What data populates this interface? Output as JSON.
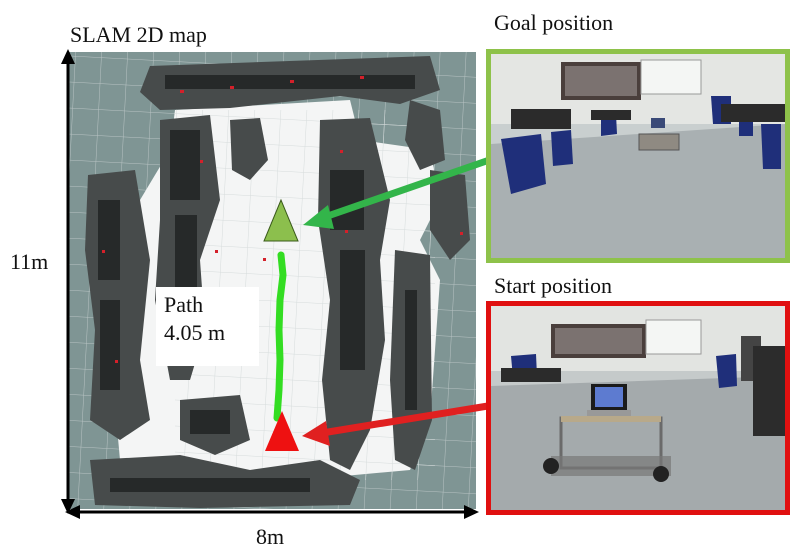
{
  "map": {
    "title": "SLAM 2D map",
    "height_label": "11m",
    "width_label": "8m",
    "path_label_line1": "Path",
    "path_label_line2": "4.05 m"
  },
  "goal": {
    "label": "Goal position",
    "frame_color": "#8ec24a",
    "marker_color": "#8cbf4d"
  },
  "start": {
    "label": "Start position",
    "frame_color": "#e01010",
    "marker_color": "#ee1111"
  },
  "path_color": "#33dd22",
  "arrow_colors": {
    "goal": "#33b54a",
    "start": "#e02020"
  }
}
